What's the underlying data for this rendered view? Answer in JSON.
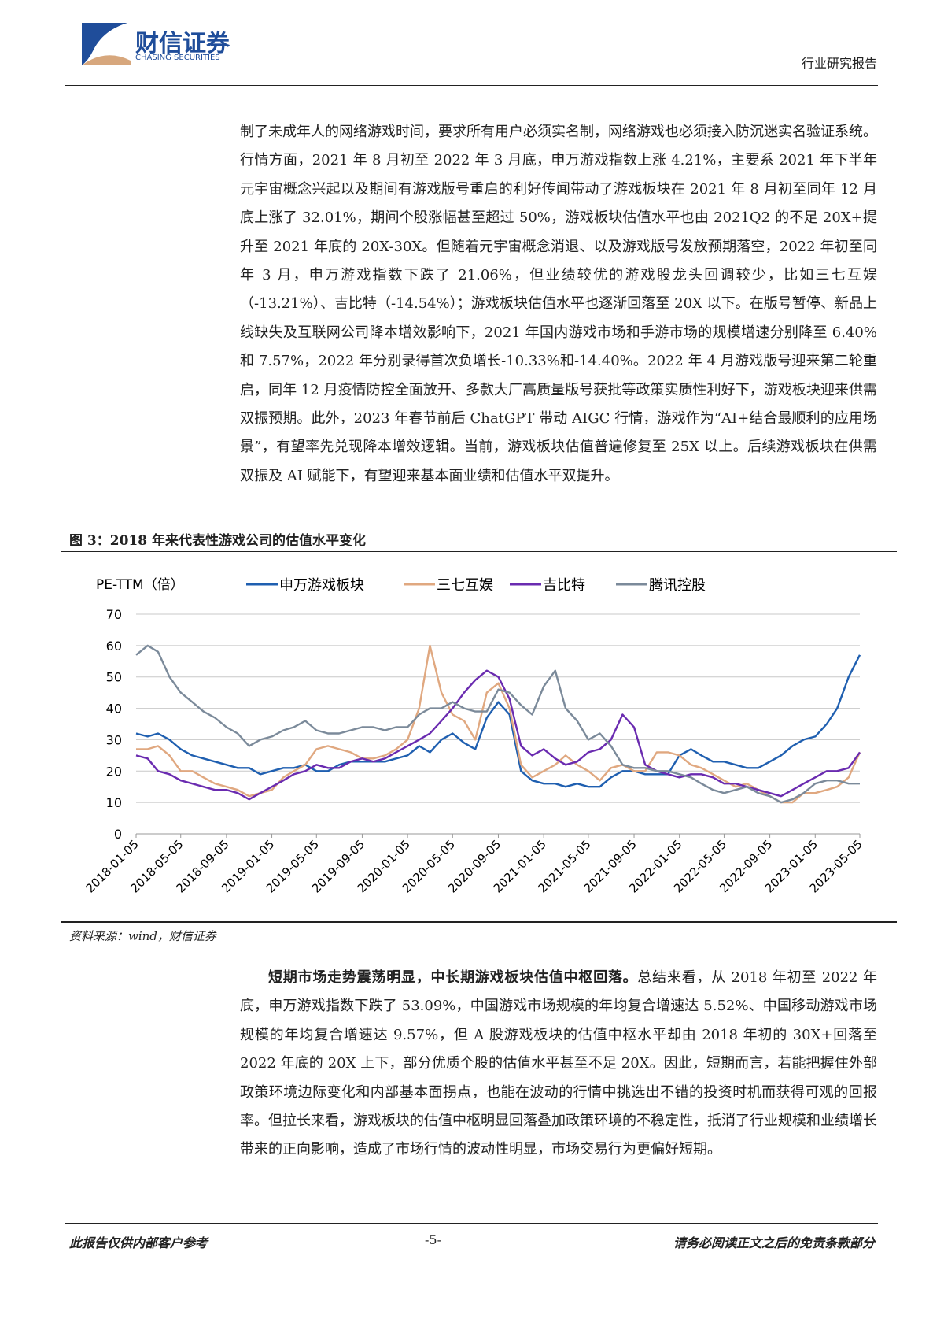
{
  "header": {
    "company": "财信证券",
    "company_en": "CHASING SECURITIES",
    "report_type": "行业研究报告"
  },
  "paragraphs": [
    {
      "text": "制了未成年人的网络游戏时间，要求所有用户必须实名制，网络游戏也必须接入防沉迷实名验证系统。行情方面，2021 年 8 月初至 2022 年 3 月底，申万游戏指数上涨 4.21%，主要系 2021 年下半年元宇宙概念兴起以及期间有游戏版号重启的利好传闻带动了游戏板块在 2021 年 8 月初至同年 12 月底上涨了 32.01%，期间个股涨幅甚至超过 50%，游戏板块估值水平也由 2021Q2 的不足 20X+提升至 2021 年底的 20X-30X。但随着元宇宙概念消退、以及游戏版号发放预期落空，2022 年初至同年 3 月，申万游戏指数下跌了 21.06%，但业绩较优的游戏股龙头回调较少，比如三七互娱（-13.21%）、吉比特（-14.54%）；游戏板块估值水平也逐渐回落至 20X 以下。在版号暂停、新品上线缺失及互联网公司降本增效影响下，2021 年国内游戏市场和手游市场的规模增速分别降至 6.40%和 7.57%，2022 年分别录得首次负增长-10.33%和-14.40%。2022 年 4 月游戏版号迎来第二轮重启，同年 12 月疫情防控全面放开、多款大厂高质量版号获批等政策实质性利好下，游戏板块迎来供需双振预期。此外，2023 年春节前后 ChatGPT 带动 AIGC 行情，游戏作为“AI+结合最顺利的应用场景”，有望率先兑现降本增效逻辑。当前，游戏板块估值普遍修复至 25X 以上。后续游戏板块在供需双振及 AI 赋能下，有望迎来基本面业绩和估值水平双提升。"
    },
    {
      "lead": "短期市场走势震荡明显，中长期游戏板块估值中枢回落。",
      "text": "总结来看，从 2018 年初至 2022 年底，申万游戏指数下跌了 53.09%，中国游戏市场规模的年均复合增速达 5.52%、中国移动游戏市场规模的年均复合增速达 9.57%，但 A 股游戏板块的估值中枢水平却由 2018 年初的 30X+回落至 2022 年底的 20X 上下，部分优质个股的估值水平甚至不足 20X。因此，短期而言，若能把握住外部政策环境边际变化和内部基本面拐点，也能在波动的行情中挑选出不错的投资时机而获得可观的回报率。但拉长来看，游戏板块的估值中枢明显回落叠加政策环境的不稳定性，抵消了行业规模和业绩增长带来的正向影响，造成了市场行情的波动性明显，市场交易行为更偏好短期。"
    }
  ],
  "figure": {
    "title": "图 3：2018 年来代表性游戏公司的估值水平变化",
    "source": "资料来源：wind，财信证券"
  },
  "chart_data": {
    "type": "line",
    "ylabel": "PE-TTM（倍）",
    "x": [
      "2018-01-05",
      "2018-02-05",
      "2018-03-05",
      "2018-04-05",
      "2018-05-05",
      "2018-06-05",
      "2018-07-05",
      "2018-08-05",
      "2018-09-05",
      "2018-10-05",
      "2018-11-05",
      "2018-12-05",
      "2019-01-05",
      "2019-02-05",
      "2019-03-05",
      "2019-04-05",
      "2019-05-05",
      "2019-06-05",
      "2019-07-05",
      "2019-08-05",
      "2019-09-05",
      "2019-10-05",
      "2019-11-05",
      "2019-12-05",
      "2020-01-05",
      "2020-02-05",
      "2020-03-05",
      "2020-04-05",
      "2020-05-05",
      "2020-06-05",
      "2020-07-05",
      "2020-08-05",
      "2020-09-05",
      "2020-10-05",
      "2020-11-05",
      "2020-12-05",
      "2021-01-05",
      "2021-02-05",
      "2021-03-05",
      "2021-04-05",
      "2021-05-05",
      "2021-06-05",
      "2021-07-05",
      "2021-08-05",
      "2021-09-05",
      "2021-10-05",
      "2021-11-05",
      "2021-12-05",
      "2022-01-05",
      "2022-02-05",
      "2022-03-05",
      "2022-04-05",
      "2022-05-05",
      "2022-06-05",
      "2022-07-05",
      "2022-08-05",
      "2022-09-05",
      "2022-10-05",
      "2022-11-05",
      "2022-12-05",
      "2023-01-05",
      "2023-02-05",
      "2023-03-05",
      "2023-04-05",
      "2023-05-05"
    ],
    "series": [
      {
        "name": "申万游戏板块",
        "color": "#1f5fb0",
        "values": [
          32,
          31,
          32,
          30,
          27,
          25,
          24,
          23,
          22,
          21,
          21,
          19,
          20,
          21,
          21,
          22,
          20,
          20,
          22,
          23,
          23,
          23,
          23,
          24,
          25,
          28,
          26,
          30,
          32,
          29,
          27,
          37,
          42,
          38,
          20,
          17,
          16,
          16,
          15,
          16,
          15,
          15,
          18,
          20,
          20,
          19,
          19,
          19,
          25,
          27,
          25,
          23,
          23,
          22,
          21,
          21,
          23,
          25,
          28,
          30,
          31,
          35,
          40,
          50,
          57
        ]
      },
      {
        "name": "三七互娱",
        "color": "#e0a880",
        "values": [
          27,
          27,
          28,
          25,
          20,
          20,
          18,
          16,
          15,
          14,
          12,
          13,
          14,
          18,
          20,
          22,
          27,
          28,
          27,
          26,
          24,
          24,
          25,
          27,
          30,
          40,
          60,
          45,
          38,
          36,
          30,
          45,
          48,
          40,
          22,
          18,
          20,
          22,
          25,
          22,
          20,
          17,
          21,
          22,
          20,
          20,
          26,
          26,
          25,
          22,
          21,
          19,
          17,
          15,
          16,
          14,
          12,
          10,
          10,
          13,
          13,
          14,
          15,
          18,
          26
        ]
      },
      {
        "name": "吉比特",
        "color": "#6a2bb0",
        "values": [
          25,
          24,
          20,
          19,
          17,
          16,
          15,
          14,
          14,
          13,
          11,
          13,
          15,
          17,
          19,
          20,
          22,
          21,
          21,
          23,
          24,
          23,
          24,
          26,
          28,
          30,
          32,
          36,
          40,
          45,
          49,
          52,
          50,
          43,
          28,
          25,
          27,
          24,
          22,
          23,
          26,
          27,
          30,
          38,
          34,
          22,
          20,
          19,
          18,
          19,
          19,
          18,
          16,
          16,
          15,
          14,
          13,
          12,
          14,
          16,
          18,
          20,
          20,
          21,
          26
        ]
      },
      {
        "name": "腾讯控股",
        "color": "#7b8a9a",
        "values": [
          57,
          60,
          58,
          50,
          45,
          42,
          39,
          37,
          34,
          32,
          28,
          30,
          31,
          33,
          34,
          36,
          33,
          32,
          32,
          33,
          34,
          34,
          33,
          34,
          34,
          38,
          40,
          40,
          42,
          40,
          39,
          39,
          46,
          45,
          41,
          38,
          47,
          52,
          40,
          36,
          30,
          32,
          28,
          22,
          21,
          21,
          20,
          20,
          19,
          18,
          16,
          14,
          13,
          14,
          15,
          13,
          12,
          10,
          11,
          13,
          16,
          17,
          17,
          16,
          16
        ]
      }
    ],
    "xlim": [
      "2018-01-05",
      "2023-05-05"
    ],
    "xticks": [
      "2018-01-05",
      "2018-05-05",
      "2018-09-05",
      "2019-01-05",
      "2019-05-05",
      "2019-09-05",
      "2020-01-05",
      "2020-05-05",
      "2020-09-05",
      "2021-01-05",
      "2021-05-05",
      "2021-09-05",
      "2022-01-05",
      "2022-05-05",
      "2022-09-05",
      "2023-01-05",
      "2023-05-05"
    ],
    "ylim": [
      0,
      70
    ],
    "yticks": [
      0,
      10,
      20,
      30,
      40,
      50,
      60,
      70
    ],
    "grid": true,
    "legend": "top"
  },
  "footer": {
    "left": "此报告仅供内部客户参考",
    "page": "-5-",
    "right": "请务必阅读正文之后的免责条款部分"
  }
}
